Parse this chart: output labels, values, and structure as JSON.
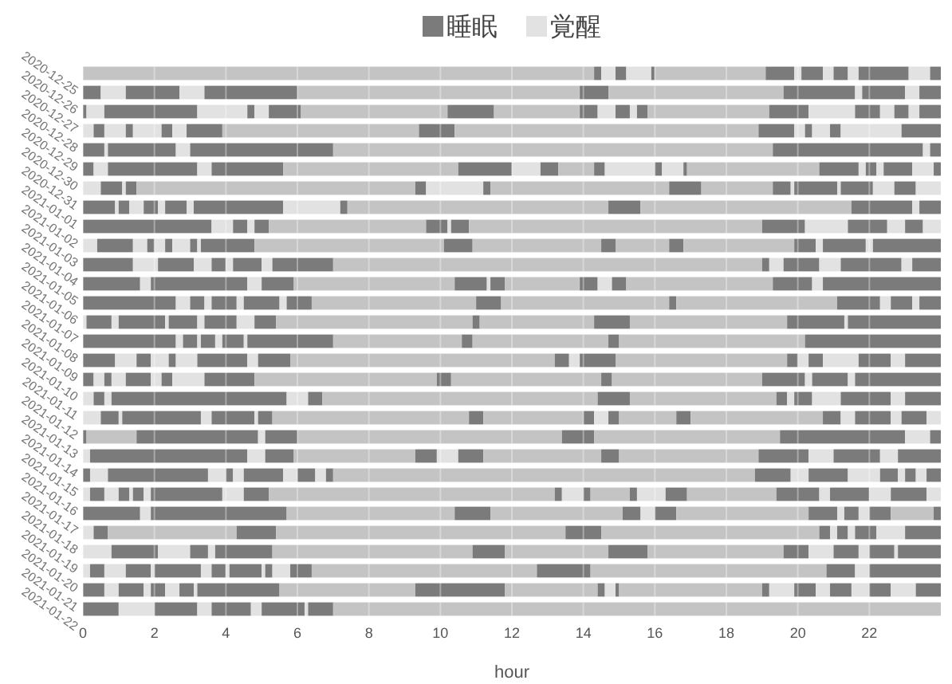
{
  "chart_data": {
    "type": "bar",
    "orientation": "horizontal",
    "stacked": true,
    "xlabel": "hour",
    "xlim": [
      0,
      24
    ],
    "xticks": [
      0,
      2,
      4,
      6,
      8,
      10,
      12,
      14,
      16,
      18,
      20,
      22
    ],
    "grid": "x",
    "legend": "top",
    "categories": [
      "2020-12-25",
      "2020-12-26",
      "2020-12-27",
      "2020-12-28",
      "2020-12-29",
      "2020-12-30",
      "2020-12-31",
      "2021-01-01",
      "2021-01-02",
      "2021-01-03",
      "2021-01-04",
      "2021-01-05",
      "2021-01-06",
      "2021-01-07",
      "2021-01-08",
      "2021-01-09",
      "2021-01-10",
      "2021-01-11",
      "2021-01-12",
      "2021-01-13",
      "2021-01-14",
      "2021-01-15",
      "2021-01-16",
      "2021-01-17",
      "2021-01-18",
      "2021-01-19",
      "2021-01-20",
      "2021-01-21",
      "2021-01-22"
    ],
    "series": [
      {
        "name": "睡眠",
        "color": "#7b7b7b",
        "values": [
          null,
          0.5,
          0.1,
          null,
          0.6,
          0.3,
          null,
          0.9,
          3.6,
          null,
          1.4,
          1.6,
          2.6,
          null,
          2.6,
          0.9,
          0.3,
          null,
          null,
          0.1,
          null,
          0.2,
          null,
          1.6,
          null,
          null,
          null,
          0.6,
          1.0
        ]
      },
      {
        "name": "覚醒",
        "color": "#e2e2e2",
        "colors": [
          "#c4c4c4",
          "#e2e2e2",
          "#e2e2e2",
          "#e2e2e2",
          "#e2e2e2",
          "#e2e2e2",
          "#e2e2e2",
          "#e2e2e2",
          "#e2e2e2",
          "#e2e2e2",
          "#e2e2e2",
          "#e2e2e2",
          "#e2e2e2",
          "#e2e2e2",
          "#e2e2e2",
          "#e2e2e2",
          "#e2e2e2",
          "#e2e2e2",
          "#e2e2e2",
          "#c4c4c4",
          "#e2e2e2",
          "#e2e2e2",
          "#e2e2e2",
          "#e2e2e2",
          "#e2e2e2",
          "#e2e2e2",
          "#e2e2e2",
          "#e2e2e2",
          "#e2e2e2"
        ],
        "values": [
          14.3,
          0.7,
          0.5,
          0.3,
          0.1,
          0.4,
          0.5,
          0.1,
          0.6,
          0.4,
          0.7,
          0.3,
          0.4,
          0.1,
          0.2,
          0.6,
          0.3,
          0.3,
          0.5,
          1.4,
          0.2,
          0.5,
          0.2,
          0.3,
          0.3,
          0.8,
          0.2,
          0.4,
          1.0
        ]
      },
      {
        "color": "#7b7b7b",
        "values": [
          0.2,
          1.5,
          2.6,
          0.3,
          1.9,
          2.5,
          0.6,
          0.3,
          0.4,
          1.0,
          1.0,
          2.7,
          0.4,
          0.7,
          0.4,
          0.4,
          0.2,
          0.3,
          0.5,
          3.4,
          4.4,
          2.8,
          0.4,
          3.8,
          0.4,
          1.3,
          0.4,
          0.7,
          1.2
        ]
      },
      {
        "colors": [
          "#e2e2e2",
          "#e2e2e2",
          "#e2e2e2",
          "#e2e2e2",
          "#e2e2e2",
          "#e2e2e2",
          "#e2e2e2",
          "#e2e2e2",
          "#e2e2e2",
          "#e2e2e2",
          "#e2e2e2",
          "#e2e2e2",
          "#e2e2e2",
          "#e2e2e2",
          "#e2e2e2",
          "#e2e2e2",
          "#e2e2e2",
          "#e2e2e2",
          "#e2e2e2",
          "#e2e2e2",
          "#e2e2e2",
          "#e2e2e2",
          "#e2e2e2",
          "#c4c4c4",
          "#c4c4c4",
          "#e2e2e2",
          "#e2e2e2",
          "#e2e2e2",
          "#e2e2e2"
        ],
        "values": [
          0.4,
          0.7,
          1.4,
          0.6,
          0.4,
          0.4,
          0.1,
          0.4,
          0.2,
          0.4,
          0.5,
          0.4,
          0.2,
          0.2,
          0.1,
          0.5,
          0.4,
          0.2,
          0.1,
          0.2,
          0.5,
          0.5,
          0.4,
          4.7,
          3.6,
          0.9,
          0.6,
          0.2,
          0.4
        ]
      },
      {
        "color": "#7b7b7b",
        "values": [
          0.3,
          2.6,
          0.2,
          0.2,
          4.0,
          2.0,
          0.3,
          0.4,
          0.4,
          0.2,
          0.4,
          0.9,
          0.7,
          1.3,
          0.4,
          0.2,
          0.7,
          4.9,
          2.2,
          0.9,
          0.8,
          0.2,
          0.3,
          1.0,
          1.1,
          0.5,
          0.7,
          0.4,
          1.1
        ]
      },
      {
        "colors": [
          "#e2e2e2",
          "#c4c4c4",
          "#e2e2e2",
          "#e2e2e2",
          "#c4c4c4",
          "#c4c4c4",
          "#c4c4c4",
          "#e2e2e2",
          "#c4c4c4",
          "#e2e2e2",
          "#e2e2e2",
          "#c4c4c4",
          "#e2e2e2",
          "#e2e2e2",
          "#e2e2e2",
          "#e2e2e2",
          "#e2e2e2",
          "#e2e2e2",
          "#e2e2e2",
          "#c4c4c4",
          "#c4c4c4",
          "#e2e2e2",
          "#e2e2e2",
          "#c4c4c4",
          "#c4c4c4",
          "#e2e2e2",
          "#e2e2e2",
          "#e2e2e2",
          "#e2e2e2"
        ],
        "values": [
          0.7,
          7.9,
          0.4,
          0.8,
          12.3,
          4.9,
          7.8,
          0.2,
          4.4,
          0.3,
          0.2,
          4.5,
          0.2,
          0.1,
          0.2,
          0.6,
          0.3,
          0.6,
          0.3,
          7.4,
          3.4,
          0.3,
          0.1,
          3.7,
          8.1,
          0.2,
          0.1,
          0.4,
          0.3
        ]
      },
      {
        "color": "#7b7b7b",
        "values": [
          0.1,
          0.8,
          0.9,
          0.3,
          4.2,
          1.5,
          0.3,
          0.6,
          0.6,
          0.2,
          0.8,
          0.9,
          1.0,
          0.8,
          0.6,
          1.4,
          0.3,
          0.4,
          1.2,
          0.9,
          0.6,
          1.1,
          0.3,
          0.5,
          1.0,
          1.6,
          1.3,
          0.4,
          1.2
        ]
      },
      {
        "colors": [
          "#c4c4c4",
          "#c4c4c4",
          "#c4c4c4",
          "#e2e2e2",
          "#e2e2e2",
          "#e2e2e2",
          "#e2e2e2",
          "#e2e2e2",
          "#e2e2e2",
          "#e2e2e2",
          "#e2e2e2",
          "#e2e2e2",
          "#e2e2e2",
          "#e2e2e2",
          "#e2e2e2",
          "#e2e2e2",
          "#e2e2e2",
          "#c4c4c4",
          "#e2e2e2",
          "#c4c4c4",
          "#e2e2e2",
          "#e2e2e2",
          "#e2e2e2",
          "#e2e2e2",
          "#c4c4c4",
          "#c4c4c4",
          "#e2e2e2",
          "#e2e2e2",
          "#e2e2e2"
        ],
        "values": [
          3.1,
          4.9,
          4.1,
          0.4,
          0.2,
          0.8,
          1.6,
          0.2,
          0.1,
          0.5,
          0.3,
          0.1,
          0.2,
          0.2,
          0.1,
          0.3,
          0.9,
          7.7,
          0.1,
          5.2,
          0.6,
          0.4,
          0.2,
          0.4,
          6.1,
          5.6,
          0.3,
          0.1,
          0.1
        ]
      },
      {
        "color": "#7b7b7b",
        "values": [
          0.8,
          2.0,
          1.3,
          1.0,
          0.3,
          0.5,
          0.2,
          2.5,
          0.5,
          0.2,
          1.7,
          0.4,
          0.7,
          0.9,
          2.4,
          0.9,
          1.4,
          0.9,
          0.4,
          3.5,
          0.7,
          0.5,
          2.0,
          0.6,
          0.3,
          0.9,
          0.4,
          2.3,
          0.7
        ]
      },
      {
        "colors": [
          "#e2e2e2",
          "#e2e2e2",
          "#c4c4c4",
          "#c4c4c4",
          null,
          "#c4c4c4",
          "#c4c4c4",
          "#e2e2e2",
          "#c4c4c4",
          "#e2e2e2",
          "#c4c4c4",
          "#c4c4c4",
          "#c4c4c4",
          "#e2e2e2",
          "#c4c4c4",
          "#c4c4c4",
          "#c4c4c4",
          "#c4c4c4",
          "#c4c4c4",
          "#e2e2e2",
          "#c4c4c4",
          "#e2e2e2",
          "#e2e2e2",
          "#c4c4c4",
          "#e2e2e2",
          "#c4c4c4",
          "#e2e2e2",
          "#c4c4c4",
          "#c4c4c4"
        ],
        "values": [
          0.2,
          0.2,
          2.4,
          5.5,
          null,
          1.0,
          5.0,
          1.6,
          8.2,
          0.1,
          12.0,
          2.1,
          4.6,
          0.5,
          3.6,
          7.4,
          5.1,
          4.1,
          5.5,
          0.7,
          3.3,
          0.3,
          0.6,
          3.7,
          0.2,
          2.9,
          0.1,
          3.8,
          17.0
        ]
      },
      {
        "color": "#7b7b7b",
        "values": [
          0.6,
          1.2,
          0.5,
          1.0,
          null,
          0.3,
          0.9,
          0.2,
          1.2,
          1.5,
          0.2,
          0.5,
          0.7,
          0.6,
          0.3,
          0.4,
          0.4,
          0.3,
          0.4,
          0.3,
          0.5,
          0.2,
          0.7,
          0.8,
          0.3,
          1.1,
          0.9,
          2.5,
          null
        ]
      },
      {
        "colors": [
          "#e2e2e2",
          "#e2e2e2",
          "#e2e2e2",
          "#c4c4c4",
          null,
          "#e2e2e2",
          "#c4c4c4",
          "#c4c4c4",
          "#e2e2e2",
          "#c4c4c4",
          "#e2e2e2",
          "#e2e2e2",
          "#c4c4c4",
          "#c4c4c4",
          "#c4c4c4",
          "#e2e2e2",
          "#c4c4c4",
          "#e2e2e2",
          "#c4c4c4",
          null,
          "#c4c4c4",
          "#c4c4c4",
          "#c4c4c4",
          "#e2e2e2",
          "#e2e2e2",
          "#c4c4c4",
          "#e2e2e2",
          "#c4c4c4",
          null
        ],
        "values": [
          0.3,
          0.4,
          0.5,
          8.5,
          null,
          1.4,
          2.0,
          7.3,
          1.2,
          5.3,
          0.4,
          0.4,
          4.7,
          5.5,
          3.8,
          0.3,
          4.2,
          0.2,
          2.8,
          null,
          3.9,
          11.8,
          8.0,
          0.2,
          0.2,
          3.8,
          0.1,
          2.6,
          null
        ]
      },
      {
        "color": "#7b7b7b",
        "values": [
          0.4,
          0.6,
          0.4,
          1.0,
          null,
          0.2,
          0.5,
          0.9,
          1.1,
          0.8,
          1.0,
          0.4,
          0.2,
          0.2,
          0.3,
          1.0,
          0.3,
          0.5,
          0.3,
          null,
          1.4,
          1.0,
          0.2,
          0.4,
          0.6,
          0.7,
          0.2,
          0.2,
          null
        ]
      },
      {
        "colors": [
          "#e2e2e2",
          null,
          "#e2e2e2",
          "#e2e2e2",
          null,
          "#e2e2e2",
          "#e2e2e2",
          "#c4c4c4",
          "#e2e2e2",
          "#c4c4c4",
          "#e2e2e2",
          "#c4c4c4",
          "#c4c4c4",
          "#c4c4c4",
          "#c4c4c4",
          "#c4c4c4",
          "#c4c4c4",
          "#e2e2e2",
          "#e2e2e2",
          null,
          "#e2e2e2",
          "#e2e2e2",
          "#e2e2e2",
          "#e2e2e2",
          "#e2e2e2",
          "#e2e2e2",
          "#e2e2e2",
          "#e2e2e2",
          null
        ],
        "values": [
          0.3,
          null,
          0.2,
          0.3,
          null,
          0.6,
          0.1,
          5.9,
          0.5,
          3.6,
          0.6,
          4.1,
          4.5,
          3.2,
          5.2,
          4.8,
          4.2,
          0.8,
          0.4,
          null,
          0.7,
          0.5,
          0.6,
          0.3,
          0.8,
          0.7,
          0.5,
          0.3,
          null
        ]
      },
      {
        "color": "#7b7b7b",
        "values": [
          1.4,
          null,
          0.3,
          0.2,
          null,
          0.1,
          1.2,
          1.7,
          0.5,
          0.4,
          1.7,
          1.1,
          1.2,
          1.0,
          3.8,
          0.3,
          1.2,
          1.4,
          0.3,
          null,
          1.3,
          1.1,
          0.2,
          0.6,
          1.0,
          0.7,
          0.6,
          0.1,
          null
        ]
      },
      {
        "colors": [
          "#e2e2e2",
          null,
          "#c4c4c4",
          "#e2e2e2",
          null,
          "#c4c4c4",
          "#e2e2e2",
          "#e2e2e2",
          "#e2e2e2",
          "#c4c4c4",
          "#e2e2e2",
          "#e2e2e2",
          "#e2e2e2",
          "#c4c4c4",
          null,
          "#e2e2e2",
          "#e2e2e2",
          "#e2e2e2",
          "#c4c4c4",
          null,
          "#e2e2e2",
          "#e2e2e2",
          "#c4c4c4",
          "#c4c4c4",
          null,
          "#e2e2e2",
          "#c4c4c4",
          "#c4c4c4",
          null
        ],
        "values": [
          0.6,
          null,
          3.4,
          0.5,
          null,
          3.7,
          0.1,
          0.2,
          0.5,
          1.5,
          0.3,
          0.3,
          0.3,
          4.4,
          null,
          0.3,
          0.2,
          0.4,
          1.6,
          null,
          0.5,
          0.9,
          1.1,
          1.2,
          null,
          0.3,
          6.3,
          4.0,
          null
        ]
      },
      {
        "color": "#7b7b7b",
        "values": [
          0.3,
          null,
          1.1,
          0.3,
          null,
          1.1,
          0.9,
          0.6,
          null,
          0.4,
          0.8,
          3.3,
          0.6,
          1.6,
          null,
          0.4,
          1.0,
          1.0,
          0.4,
          null,
          1.2,
          0.5,
          0.2,
          0.2,
          null,
          0.7,
          1.5,
          0.2,
          null
        ]
      },
      {
        "colors": [
          null,
          null,
          "#e2e2e2",
          "#e2e2e2",
          null,
          "#e2e2e2",
          "#e2e2e2",
          null,
          null,
          "#c4c4c4",
          null,
          null,
          "#e2e2e2",
          "#e2e2e2",
          null,
          "#e2e2e2",
          "#e2e2e2",
          null,
          "#c4c4c4",
          null,
          null,
          "#e2e2e2",
          "#e2e2e2",
          null,
          null,
          "#e2e2e2",
          "#c4c4c4",
          "#e2e2e2",
          null
        ],
        "values": [
          null,
          null,
          1.3,
          1.7,
          null,
          0.2,
          0.6,
          null,
          null,
          3.1,
          null,
          null,
          0.2,
          0.1,
          null,
          1.0,
          0.2,
          null,
          3.7,
          null,
          null,
          0.2,
          0.8,
          null,
          null,
          0.1,
          6.6,
          0.7,
          null
        ]
      },
      {
        "color": "#7b7b7b",
        "values": [
          null,
          null,
          0.7,
          1.1,
          null,
          0.3,
          0.6,
          null,
          null,
          0.6,
          null,
          null,
          0.6,
          2.6,
          null,
          0.9,
          2.4,
          null,
          0.5,
          null,
          null,
          0.3,
          0.6,
          null,
          null,
          1.2,
          0.8,
          0.6,
          null
        ]
      },
      {
        "colors": [
          null,
          null,
          "#e2e2e2",
          null,
          null,
          "#e2e2e2",
          "#e2e2e2",
          null,
          null,
          "#e2e2e2",
          null,
          null,
          null,
          null,
          null,
          "#e2e2e2",
          null,
          null,
          "#e2e2e2",
          null,
          null,
          "#e2e2e2",
          "#c4c4c4",
          null,
          null,
          null,
          "#e2e2e2",
          "#e2e2e2",
          null
        ],
        "values": [
          null,
          null,
          0.4,
          null,
          null,
          0.2,
          0.7,
          null,
          null,
          0.2,
          null,
          null,
          null,
          null,
          null,
          0.4,
          null,
          null,
          0.4,
          null,
          null,
          0.3,
          2.5,
          null,
          null,
          null,
          0.4,
          0.4,
          null
        ]
      },
      {
        "color": "#7b7b7b",
        "values": [
          null,
          null,
          0.4,
          null,
          null,
          0.8,
          null,
          null,
          null,
          1.2,
          null,
          null,
          null,
          null,
          null,
          1.0,
          null,
          null,
          1.0,
          null,
          null,
          0.4,
          1.2,
          null,
          null,
          null,
          2.0,
          0.6,
          null
        ]
      },
      {
        "color": "#e2e2e2",
        "values": [
          null,
          null,
          0.3,
          null,
          null,
          0.6,
          null,
          null,
          null,
          0.2,
          null,
          null,
          null,
          null,
          null,
          null,
          null,
          null,
          0.3,
          null,
          null,
          null,
          0.3,
          null,
          null,
          null,
          null,
          0.5,
          null
        ]
      },
      {
        "color": "#7b7b7b",
        "values": [
          null,
          null,
          0.6,
          null,
          null,
          0.2,
          null,
          null,
          null,
          1.9,
          null,
          null,
          null,
          null,
          null,
          null,
          null,
          null,
          0.7,
          null,
          null,
          null,
          1.1,
          null,
          null,
          null,
          null,
          0.6,
          null
        ]
      },
      {
        "color": "#e2e2e2",
        "values": [
          null,
          null,
          null,
          null,
          null,
          null,
          null,
          null,
          null,
          null,
          null,
          null,
          null,
          null,
          null,
          null,
          null,
          null,
          0.4,
          null,
          null,
          null,
          0.6,
          null,
          null,
          null,
          null,
          0.7,
          null
        ]
      },
      {
        "color": "#7b7b7b",
        "values": [
          null,
          null,
          null,
          null,
          null,
          null,
          null,
          null,
          null,
          null,
          null,
          null,
          null,
          null,
          null,
          null,
          null,
          null,
          null,
          null,
          null,
          null,
          1.0,
          null,
          null,
          null,
          null,
          0.7,
          null
        ]
      },
      {
        "color": "#e2e2e2",
        "values": [
          null,
          null,
          null,
          null,
          null,
          null,
          null,
          null,
          null,
          null,
          null,
          null,
          null,
          null,
          null,
          null,
          null,
          null,
          null,
          null,
          null,
          null,
          0.4,
          null,
          null,
          null,
          null,
          null,
          null
        ]
      }
    ]
  }
}
